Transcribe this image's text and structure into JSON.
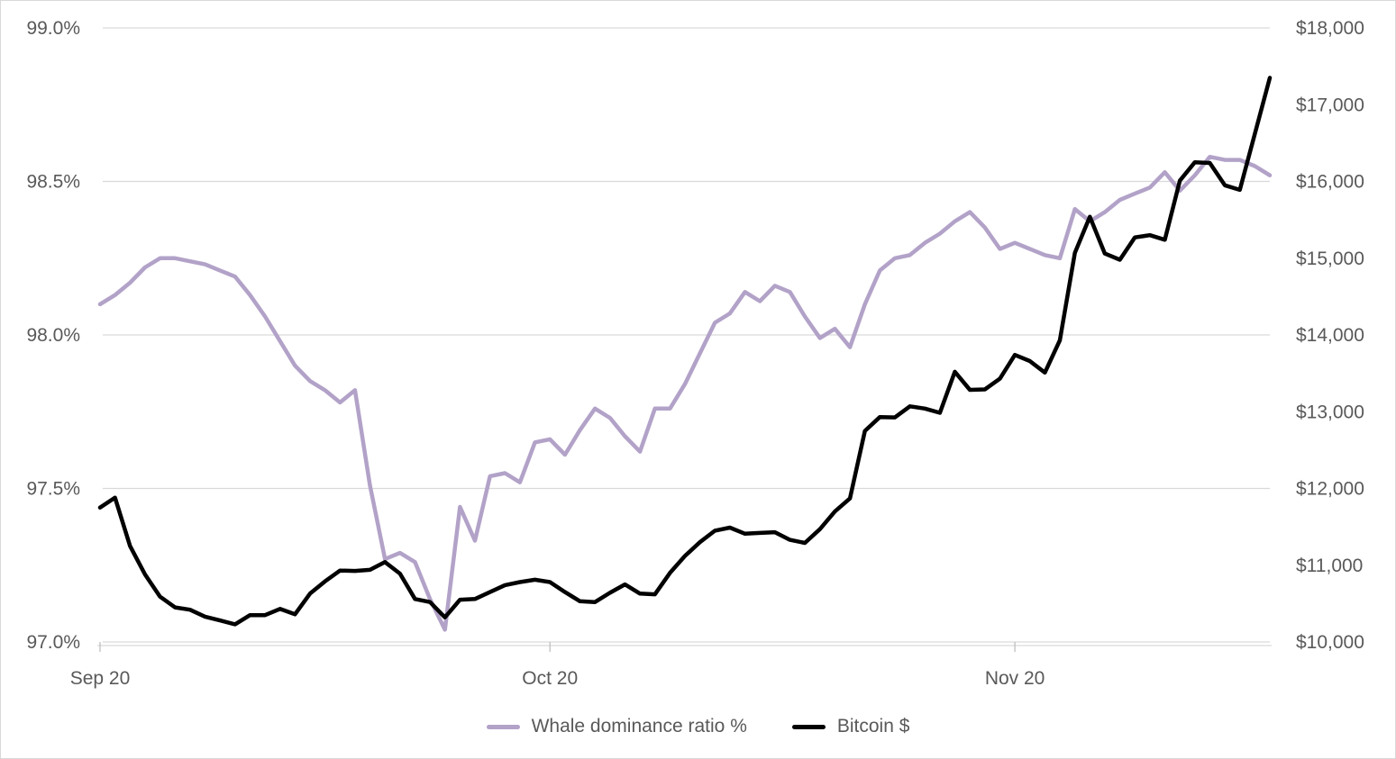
{
  "colors": {
    "text": "#595959",
    "gridline": "#d9d9d9",
    "axis_line": "#d9d9d9",
    "tick_mark": "#bfbfbf",
    "background": "#ffffff",
    "frame_border": "#d9d9d9",
    "whale_series": "#b2a2c8",
    "bitcoin_series": "#000000"
  },
  "chart_data": {
    "type": "line",
    "title": "",
    "n_points": 79,
    "x_tick_labels": [
      "Sep 20",
      "Oct 20",
      "Nov 20"
    ],
    "x_tick_day_index": [
      0,
      30,
      61
    ],
    "left_axis": {
      "min": 97.0,
      "max": 99.0,
      "step": 0.5,
      "tick_labels": [
        "99.0%",
        "98.5%",
        "98.0%",
        "97.5%",
        "97.0%"
      ],
      "tick_values": [
        99.0,
        98.5,
        98.0,
        97.5,
        97.0
      ]
    },
    "right_axis": {
      "min": 10000,
      "max": 18000,
      "step": 1000,
      "tick_labels": [
        "$18,000",
        "$17,000",
        "$16,000",
        "$15,000",
        "$14,000",
        "$13,000",
        "$12,000",
        "$11,000",
        "$10,000"
      ],
      "tick_values": [
        18000,
        17000,
        16000,
        15000,
        14000,
        13000,
        12000,
        11000,
        10000
      ]
    },
    "grid": true,
    "legend_position": "bottom",
    "series": [
      {
        "name": "Whale dominance ratio %",
        "axis": "left",
        "color": "#b2a2c8",
        "values": [
          98.1,
          98.13,
          98.17,
          98.22,
          98.25,
          98.25,
          98.24,
          98.23,
          98.21,
          98.19,
          98.13,
          98.06,
          97.98,
          97.9,
          97.85,
          97.82,
          97.78,
          97.82,
          97.51,
          97.27,
          97.29,
          97.26,
          97.14,
          97.04,
          97.44,
          97.33,
          97.54,
          97.55,
          97.52,
          97.65,
          97.66,
          97.61,
          97.69,
          97.76,
          97.73,
          97.67,
          97.62,
          97.76,
          97.76,
          97.84,
          97.94,
          98.04,
          98.07,
          98.14,
          98.11,
          98.16,
          98.14,
          98.06,
          97.99,
          98.02,
          97.96,
          98.1,
          98.21,
          98.25,
          98.26,
          98.3,
          98.33,
          98.37,
          98.4,
          98.35,
          98.28,
          98.3,
          98.28,
          98.26,
          98.25,
          98.41,
          98.37,
          98.4,
          98.44,
          98.46,
          98.48,
          98.53,
          98.47,
          98.52,
          98.58,
          98.57,
          98.57,
          98.55,
          98.52
        ]
      },
      {
        "name": "Bitcoin $",
        "axis": "right",
        "color": "#000000",
        "values": [
          11750,
          11880,
          11250,
          10880,
          10590,
          10450,
          10420,
          10330,
          10280,
          10230,
          10350,
          10350,
          10430,
          10360,
          10630,
          10790,
          10930,
          10925,
          10940,
          11040,
          10890,
          10560,
          10520,
          10320,
          10550,
          10560,
          10650,
          10740,
          10780,
          10810,
          10780,
          10650,
          10530,
          10520,
          10640,
          10750,
          10630,
          10620,
          10900,
          11120,
          11300,
          11450,
          11490,
          11410,
          11420,
          11430,
          11330,
          11290,
          11470,
          11700,
          11870,
          12750,
          12930,
          12925,
          13070,
          13040,
          12985,
          13520,
          13285,
          13290,
          13430,
          13740,
          13660,
          13510,
          13930,
          15070,
          15540,
          15060,
          14980,
          15270,
          15300,
          15240,
          16010,
          16250,
          16240,
          15950,
          15890,
          16620,
          17350
        ]
      }
    ]
  }
}
